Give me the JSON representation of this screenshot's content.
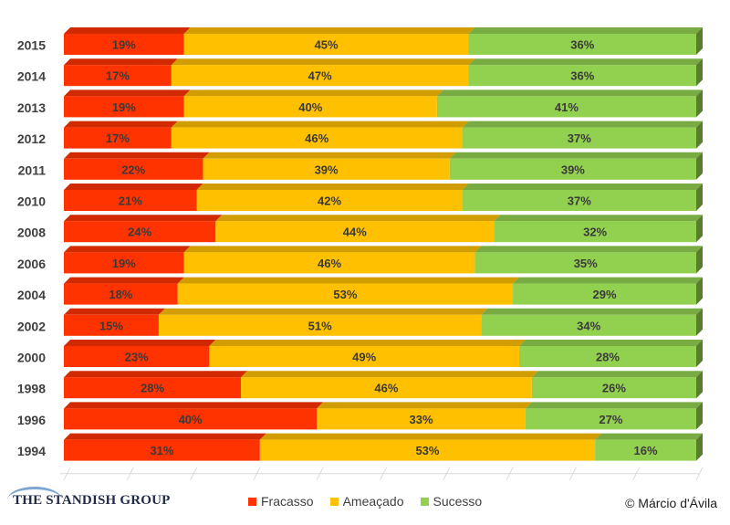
{
  "chart_data": {
    "type": "bar",
    "orientation": "horizontal",
    "stacked": true,
    "percent": true,
    "categories": [
      "2015",
      "2014",
      "2013",
      "2012",
      "2011",
      "2010",
      "2008",
      "2006",
      "2004",
      "2002",
      "2000",
      "1998",
      "1996",
      "1994"
    ],
    "series": [
      {
        "name": "Fracasso",
        "color": "#ff3300",
        "values": [
          19,
          17,
          19,
          17,
          22,
          21,
          24,
          19,
          18,
          15,
          23,
          28,
          40,
          31
        ]
      },
      {
        "name": "Ameaçado",
        "color": "#ffc000",
        "values": [
          45,
          47,
          40,
          46,
          39,
          42,
          44,
          46,
          53,
          51,
          49,
          46,
          33,
          53
        ]
      },
      {
        "name": "Sucesso",
        "color": "#92d050",
        "values": [
          36,
          36,
          41,
          37,
          39,
          37,
          32,
          35,
          29,
          34,
          28,
          26,
          27,
          16
        ]
      }
    ],
    "xlim": [
      0,
      100
    ],
    "legend_position": "bottom",
    "data_label_suffix": "%"
  },
  "source_logo": "THE STANDISH GROUP",
  "credit": "© Márcio d'Ávila"
}
